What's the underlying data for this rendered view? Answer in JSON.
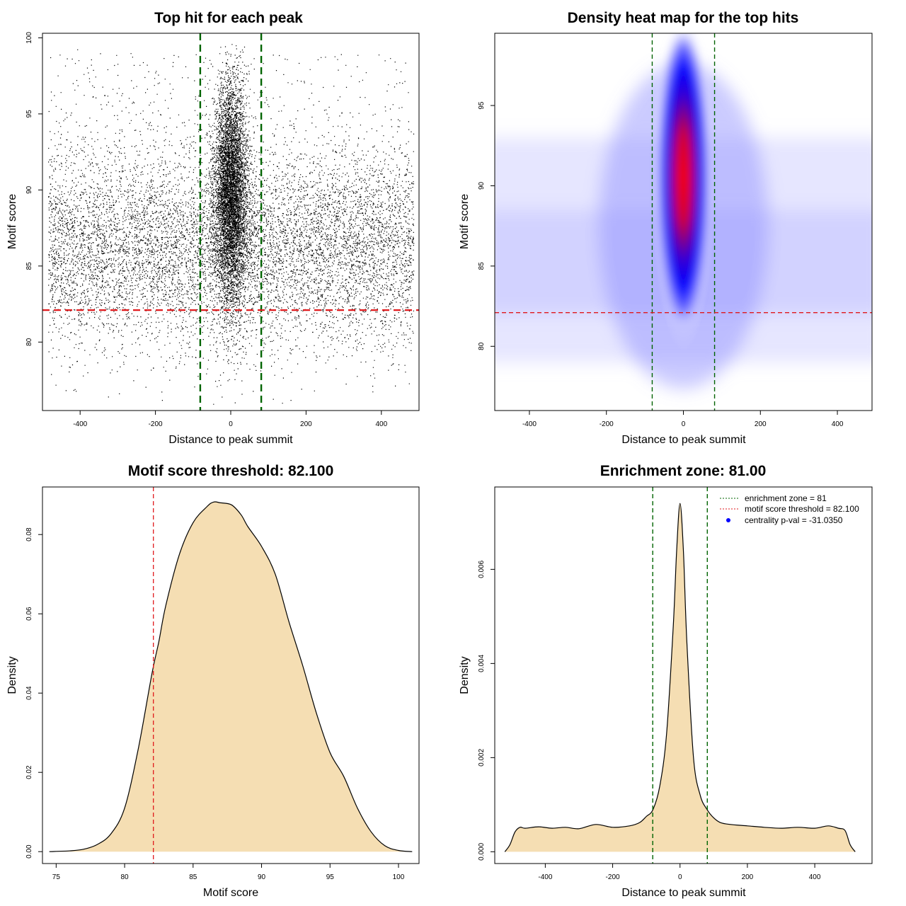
{
  "chart_data": [
    {
      "type": "scatter",
      "title": "Top hit for each peak",
      "xlabel": "Distance to peak summit",
      "ylabel": "Motif score",
      "xlim": [
        -500,
        500
      ],
      "ylim": [
        75.5,
        100.3
      ],
      "xticks": [
        -400,
        -200,
        0,
        200,
        400
      ],
      "yticks": [
        80,
        85,
        90,
        95,
        100
      ],
      "vlines": [
        -81,
        81
      ],
      "hline": 82.1,
      "grid": false,
      "colors": {
        "points": "#000000",
        "vline": "#006400",
        "hline": "#e0191c"
      }
    },
    {
      "type": "heatmap",
      "title": "Density heat map for the top hits",
      "xlabel": "Distance to peak summit",
      "ylabel": "Motif score",
      "xlim": [
        -490,
        490
      ],
      "ylim": [
        76,
        99.5
      ],
      "xticks": [
        -400,
        -200,
        0,
        200,
        400
      ],
      "yticks": [
        80,
        85,
        90,
        95
      ],
      "vlines": [
        -81,
        81
      ],
      "hline": 82.1,
      "density_peak": {
        "x": 0,
        "y": 90.5
      },
      "colors": {
        "low": "#ffffff",
        "mid": "#0000ff",
        "high": "#ff0000",
        "vline": "#006400",
        "hline": "#e0191c"
      }
    },
    {
      "type": "area",
      "title": "Motif score threshold: 82.100",
      "xlabel": "Motif score",
      "ylabel": "Density",
      "xlim": [
        74,
        101.5
      ],
      "ylim": [
        -0.003,
        0.092
      ],
      "xticks": [
        75,
        80,
        85,
        90,
        95,
        100
      ],
      "yticks": [
        0.0,
        0.02,
        0.04,
        0.06,
        0.08
      ],
      "ytick_labels": [
        "0.00",
        "0.02",
        "0.04",
        "0.06",
        "0.08"
      ],
      "vline": 82.1,
      "x": [
        74.5,
        76,
        77,
        78,
        79,
        80,
        81,
        82,
        82.5,
        83,
        84,
        85,
        86,
        86.5,
        87,
        87.8,
        88.5,
        89,
        90,
        91,
        92,
        93,
        94,
        95,
        96,
        97,
        98,
        99,
        100,
        101
      ],
      "y": [
        0.0,
        0.0002,
        0.0006,
        0.0018,
        0.0045,
        0.011,
        0.026,
        0.045,
        0.053,
        0.062,
        0.075,
        0.083,
        0.087,
        0.0882,
        0.088,
        0.0875,
        0.085,
        0.082,
        0.077,
        0.07,
        0.058,
        0.047,
        0.035,
        0.025,
        0.019,
        0.011,
        0.005,
        0.0015,
        0.0003,
        0.0
      ],
      "colors": {
        "fill": "#f5deb3",
        "line": "#000000",
        "vline": "#e0191c"
      }
    },
    {
      "type": "area",
      "title": "Enrichment zone: 81.00",
      "xlabel": "Distance to peak summit",
      "ylabel": "Density",
      "xlim": [
        -550,
        570
      ],
      "ylim": [
        -0.00025,
        0.00775
      ],
      "xticks": [
        -400,
        -200,
        0,
        200,
        400
      ],
      "yticks": [
        0.0,
        0.002,
        0.004,
        0.006
      ],
      "ytick_labels": [
        "0.000",
        "0.002",
        "0.004",
        "0.006"
      ],
      "vlines": [
        -81,
        81
      ],
      "x": [
        -520,
        -505,
        -490,
        -475,
        -460,
        -420,
        -380,
        -340,
        -300,
        -250,
        -200,
        -150,
        -120,
        -100,
        -80,
        -60,
        -40,
        -20,
        -10,
        0,
        10,
        20,
        40,
        60,
        80,
        100,
        120,
        150,
        200,
        250,
        300,
        350,
        400,
        440,
        470,
        490,
        505,
        520
      ],
      "y": [
        0.0,
        0.00015,
        0.00042,
        0.00052,
        0.0005,
        0.00053,
        0.0005,
        0.00052,
        0.00049,
        0.00058,
        0.00052,
        0.00055,
        0.00062,
        0.00075,
        0.0009,
        0.0014,
        0.0025,
        0.0048,
        0.0064,
        0.0074,
        0.0064,
        0.0045,
        0.002,
        0.0012,
        0.0009,
        0.00072,
        0.00062,
        0.00058,
        0.00055,
        0.00052,
        0.0005,
        0.00052,
        0.0005,
        0.00055,
        0.0005,
        0.00045,
        0.00015,
        0.0
      ],
      "legend": [
        {
          "label": "enrichment zone = 81",
          "kind": "dotted-line",
          "color": "#006400"
        },
        {
          "label": "motif score threshold = 82.100",
          "kind": "dotted-line",
          "color": "#e0191c"
        },
        {
          "label": "centrality p-val = -31.0350",
          "kind": "point",
          "color": "#0000ff"
        }
      ],
      "legend_position": "top-right",
      "colors": {
        "fill": "#f5deb3",
        "line": "#000000",
        "vline": "#006400"
      }
    }
  ]
}
